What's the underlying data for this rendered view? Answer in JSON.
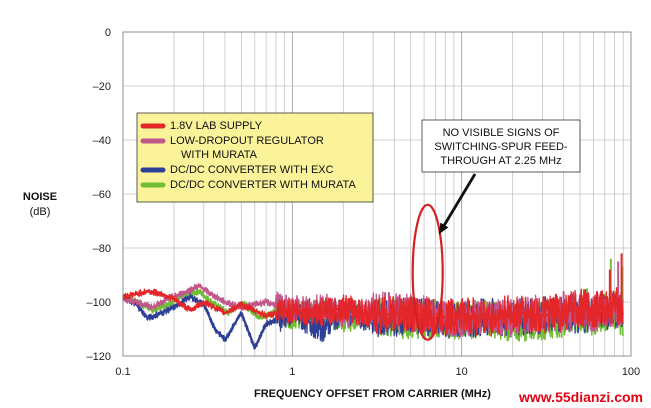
{
  "chart_data": {
    "type": "line",
    "xlabel": "FREQUENCY OFFSET FROM CARRIER (MHz)",
    "ylabel": "NOISE",
    "ylabel_unit": "(dB)",
    "x_scale": "log",
    "xlim": [
      0.1,
      100
    ],
    "ylim": [
      -120,
      0
    ],
    "x_ticks": [
      "0.1",
      "1",
      "10",
      "100"
    ],
    "y_ticks": [
      "0",
      "–20",
      "–40",
      "–60",
      "–80",
      "–100",
      "–120"
    ],
    "grid": true,
    "legend_position": "upper-left",
    "series": [
      {
        "name": "1.8V LAB SUPPLY",
        "color": "#e3262a",
        "x": [
          0.1,
          0.12,
          0.14,
          0.17,
          0.2,
          0.25,
          0.3,
          0.4,
          0.5,
          0.7,
          1,
          1.5,
          2,
          3,
          5,
          7,
          10,
          15,
          20,
          30,
          40,
          50,
          60,
          70,
          80,
          90
        ],
        "y": [
          -98,
          -97,
          -96,
          -97,
          -99,
          -103,
          -100,
          -104,
          -101,
          -105,
          -103,
          -104,
          -102,
          -105,
          -104,
          -106,
          -105,
          -106,
          -104,
          -105,
          -104,
          -102,
          -103,
          -102,
          -101,
          -103
        ],
        "spikes": [
          [
            36,
            -97
          ],
          [
            56,
            -97
          ],
          [
            63,
            -96
          ],
          [
            75,
            -88
          ],
          [
            88,
            -82
          ]
        ]
      },
      {
        "name": "LOW-DROPOUT REGULATOR WITH MURATA",
        "color": "#c2578b",
        "x": [
          0.1,
          0.12,
          0.15,
          0.18,
          0.22,
          0.28,
          0.33,
          0.4,
          0.5,
          0.7,
          1,
          1.5,
          2,
          3,
          5,
          7,
          10,
          15,
          20,
          30,
          40,
          50,
          60,
          70,
          80,
          90
        ],
        "y": [
          -99,
          -100,
          -102,
          -99,
          -97,
          -94,
          -97,
          -100,
          -102,
          -100,
          -103,
          -101,
          -105,
          -103,
          -104,
          -105,
          -106,
          -105,
          -106,
          -104,
          -105,
          -103,
          -104,
          -103,
          -102,
          -104
        ],
        "spikes": [
          [
            40,
            -96
          ],
          [
            60,
            -98
          ],
          [
            84,
            -85
          ]
        ]
      },
      {
        "name": "DC/DC CONVERTER WITH EXC",
        "color": "#2e3f96",
        "x": [
          0.1,
          0.12,
          0.14,
          0.17,
          0.2,
          0.25,
          0.3,
          0.35,
          0.4,
          0.5,
          0.6,
          0.7,
          1,
          1.5,
          2,
          3,
          5,
          7,
          10,
          15,
          20,
          30,
          40,
          50,
          60,
          70,
          80,
          90
        ],
        "y": [
          -98,
          -101,
          -106,
          -104,
          -102,
          -98,
          -101,
          -110,
          -114,
          -104,
          -117,
          -108,
          -104,
          -110,
          -103,
          -107,
          -105,
          -106,
          -107,
          -105,
          -106,
          -105,
          -104,
          -106,
          -103,
          -104,
          -102,
          -105
        ],
        "spikes": [
          [
            31,
            -98
          ],
          [
            45,
            -97
          ],
          [
            70,
            -98
          ]
        ]
      },
      {
        "name": "DC/DC CONVERTER WITH MURATA",
        "color": "#6fbe34",
        "x": [
          0.1,
          0.12,
          0.15,
          0.18,
          0.22,
          0.28,
          0.35,
          0.42,
          0.5,
          0.65,
          0.8,
          1,
          1.5,
          2,
          3,
          5,
          7,
          10,
          15,
          20,
          30,
          40,
          50,
          60,
          70,
          80,
          90
        ],
        "y": [
          -98,
          -100,
          -103,
          -101,
          -98,
          -96,
          -101,
          -104,
          -100,
          -106,
          -103,
          -105,
          -104,
          -106,
          -105,
          -107,
          -106,
          -107,
          -106,
          -108,
          -107,
          -106,
          -105,
          -107,
          -104,
          -103,
          -106
        ],
        "spikes": [
          [
            33,
            -99
          ],
          [
            55,
            -95
          ],
          [
            76,
            -84
          ],
          [
            89,
            -87
          ]
        ]
      }
    ],
    "annotations": [
      {
        "lines": [
          "NO VISIBLE SIGNS OF",
          "SWITCHING-SPUR FEED-",
          "THROUGH AT 2.25 MHz"
        ],
        "ellipse_center": [
          6.3,
          -85
        ],
        "ellipse_y_range": [
          -64,
          -114
        ]
      }
    ]
  },
  "watermark": "www.55dianzi.com"
}
